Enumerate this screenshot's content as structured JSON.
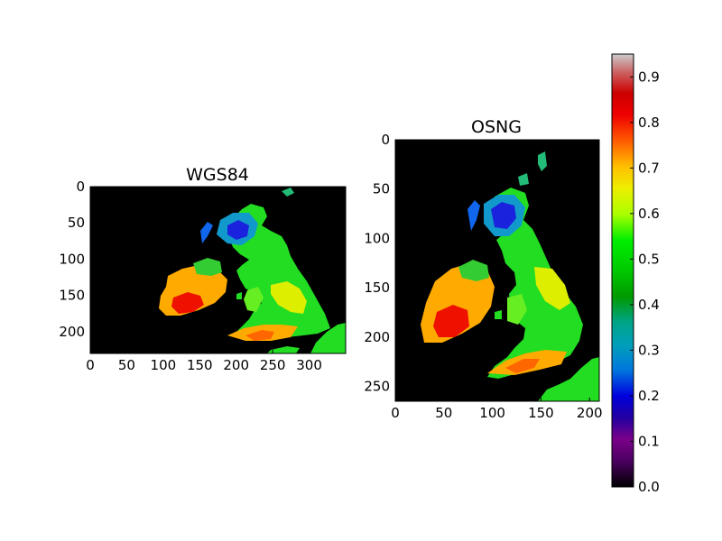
{
  "chart_data": [
    {
      "type": "heatmap",
      "title": "WGS84",
      "x_ticks": [
        0,
        50,
        100,
        150,
        200,
        250,
        300
      ],
      "y_ticks": [
        0,
        50,
        100,
        150,
        200
      ],
      "xlim": [
        0,
        350
      ],
      "ylim": [
        230,
        0
      ],
      "grid": false
    },
    {
      "type": "heatmap",
      "title": "OSNG",
      "x_ticks": [
        0,
        50,
        100,
        150,
        200
      ],
      "y_ticks": [
        0,
        50,
        100,
        150,
        200,
        250
      ],
      "xlim": [
        0,
        210
      ],
      "ylim": [
        265,
        0
      ],
      "grid": false
    },
    {
      "type": "colorbar",
      "ticks": [
        "0.0",
        "0.1",
        "0.2",
        "0.3",
        "0.4",
        "0.5",
        "0.6",
        "0.7",
        "0.8",
        "0.9"
      ],
      "range": [
        0.0,
        0.95
      ],
      "colormap": "nipy_spectral"
    }
  ]
}
